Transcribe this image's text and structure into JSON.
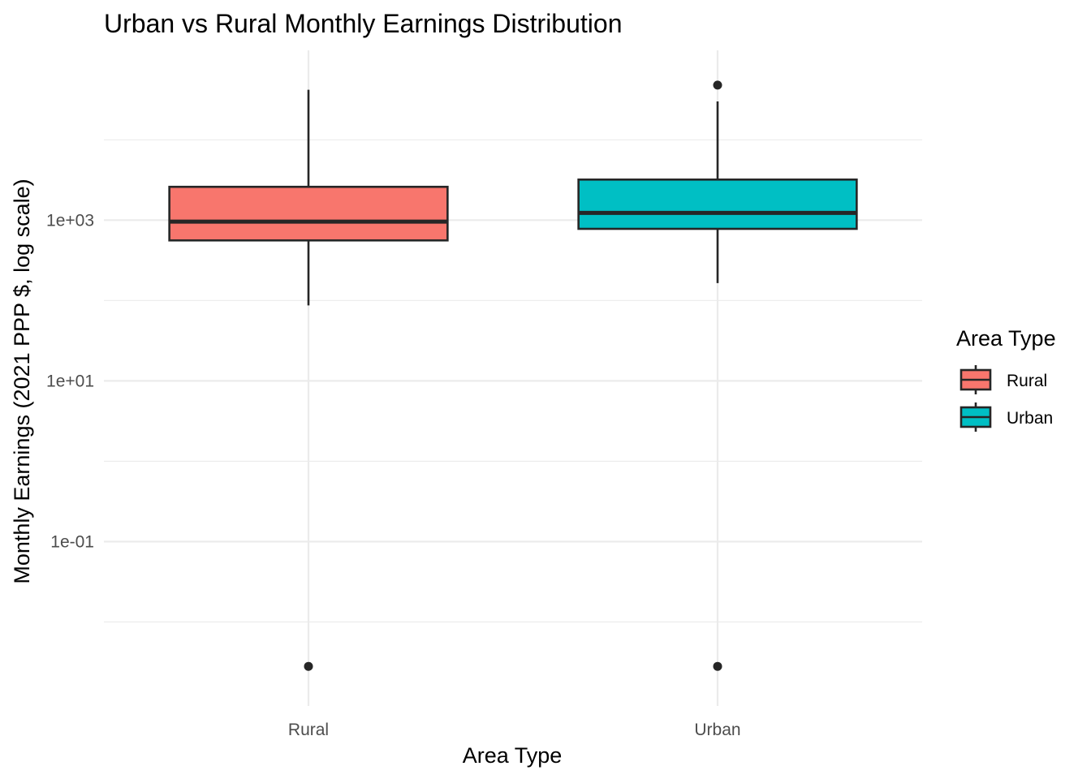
{
  "chart_data": {
    "type": "boxplot",
    "title": "Urban vs Rural Monthly Earnings Distribution",
    "xlabel": "Area Type",
    "ylabel": "Monthly Earnings (2021 PPP $, log scale)",
    "y_scale": "log10",
    "ylim": [
      0.0009,
      130000
    ],
    "y_ticks": [
      {
        "value": 0.1,
        "label": "1e-01"
      },
      {
        "value": 10,
        "label": "1e+01"
      },
      {
        "value": 1000,
        "label": "1e+03"
      }
    ],
    "y_minor_ticks": [
      0.01,
      1,
      100,
      10000
    ],
    "grid": true,
    "categories": [
      "Rural",
      "Urban"
    ],
    "series": [
      {
        "name": "Rural",
        "color": "#F8766D",
        "whisker_low": 87,
        "q1": 560,
        "median": 960,
        "q3": 2600,
        "whisker_high": 42000,
        "outliers": [
          0.0028
        ]
      },
      {
        "name": "Urban",
        "color": "#00BFC4",
        "whisker_low": 165,
        "q1": 780,
        "median": 1230,
        "q3": 3200,
        "whisker_high": 30000,
        "outliers": [
          0.0028,
          48000
        ]
      }
    ],
    "legend": {
      "title": "Area Type",
      "position": "right",
      "entries": [
        "Rural",
        "Urban"
      ]
    }
  }
}
